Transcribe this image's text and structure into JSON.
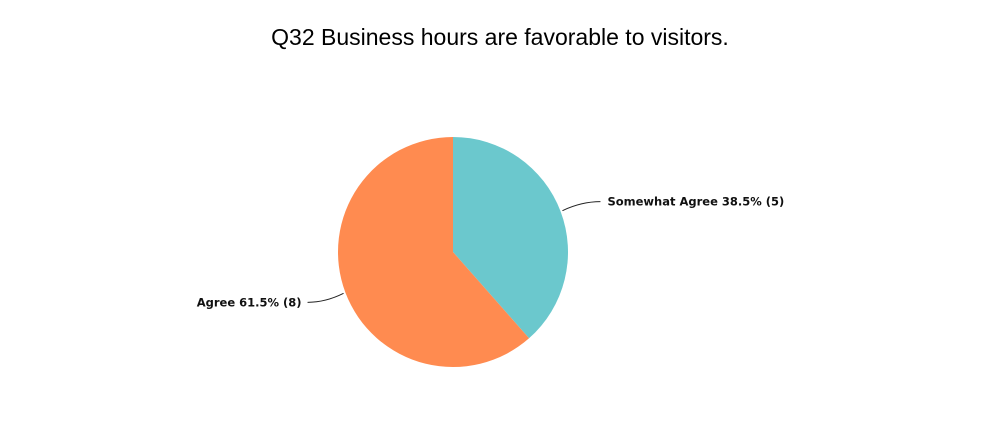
{
  "chart_data": {
    "type": "pie",
    "title": "Q32 Business hours are favorable to visitors.",
    "slices": [
      {
        "label": "Somewhat Agree",
        "percent": 38.5,
        "count": 5,
        "color": "#6BC8CD",
        "display": "Somewhat Agree 38.5% (5)"
      },
      {
        "label": "Agree",
        "percent": 61.5,
        "count": 8,
        "color": "#FF8B50",
        "display": "Agree 61.5% (8)"
      }
    ],
    "start_angle": "12 o'clock",
    "direction": "clockwise",
    "legend": "none"
  }
}
